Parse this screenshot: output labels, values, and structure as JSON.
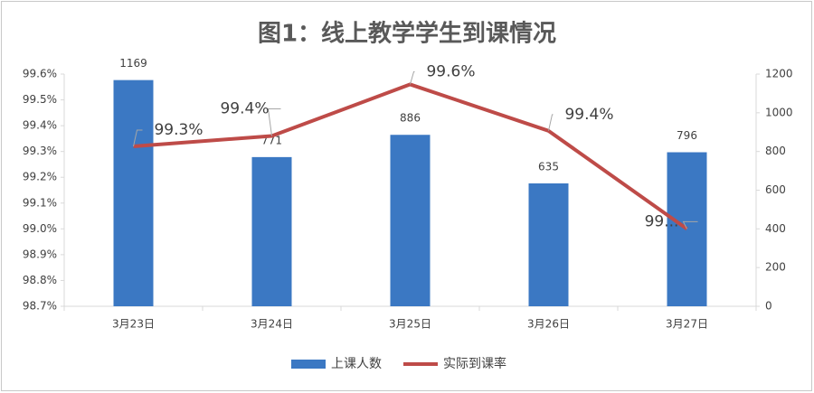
{
  "chart_data": {
    "type": "combo",
    "title": "图1：线上教学学生到课情况",
    "categories": [
      "3月23日",
      "3月24日",
      "3月25日",
      "3月26日",
      "3月27日"
    ],
    "series": [
      {
        "name": "上课人数",
        "type": "bar",
        "axis": "y2",
        "color": "#3b78c3",
        "values": [
          1169,
          771,
          886,
          635,
          796
        ]
      },
      {
        "name": "实际到课率",
        "type": "line",
        "axis": "y",
        "color": "#be4b48",
        "values": [
          99.32,
          99.36,
          99.56,
          99.38,
          99.0
        ],
        "value_labels": [
          "99.3%",
          "99.4%",
          "99.6%",
          "99.4%",
          "99..."
        ]
      }
    ],
    "ylim": [
      98.7,
      99.6
    ],
    "yticks": [
      {
        "value": 98.7,
        "label": "98.7%"
      },
      {
        "value": 98.8,
        "label": "98.8%"
      },
      {
        "value": 98.9,
        "label": "98.9%"
      },
      {
        "value": 99.0,
        "label": "99.0%"
      },
      {
        "value": 99.1,
        "label": "99.1%"
      },
      {
        "value": 99.2,
        "label": "99.2%"
      },
      {
        "value": 99.3,
        "label": "99.3%"
      },
      {
        "value": 99.4,
        "label": "99.4%"
      },
      {
        "value": 99.5,
        "label": "99.5%"
      },
      {
        "value": 99.6,
        "label": "99.6%"
      }
    ],
    "y2lim": [
      0,
      1200
    ],
    "y2ticks": [
      0,
      200,
      400,
      600,
      800,
      1000,
      1200
    ],
    "grid": false,
    "legend": "bottom"
  }
}
